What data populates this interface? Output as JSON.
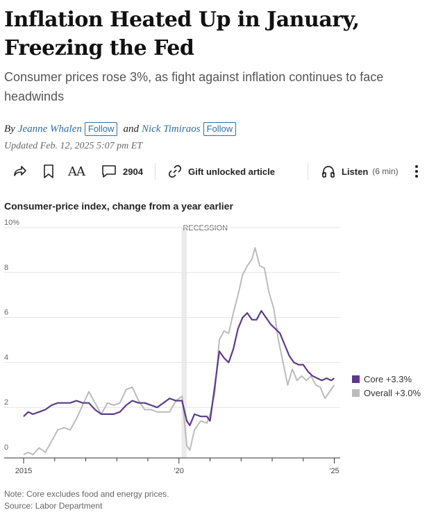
{
  "article": {
    "headline_line1": "Inflation Heated Up in January,",
    "headline_line2": "Freezing the Fed",
    "dek": "Consumer prices rose 3%, as fight against inflation continues to face headwinds",
    "by_label": "By",
    "author1": "Jeanne Whalen",
    "and_label": "and",
    "author2": "Nick Timiraos",
    "follow_label": "Follow",
    "updated": "Updated Feb. 12, 2025 5:07 pm ET"
  },
  "toolbar": {
    "share_icon": "share-icon",
    "bookmark_icon": "bookmark-icon",
    "text_size_label": "AA",
    "comments_count": "2904",
    "gift_label": "Gift unlocked article",
    "listen_label": "Listen",
    "listen_duration": "(6 min)"
  },
  "chart_data": {
    "type": "line",
    "title": "Consumer-price index, change from a year earlier",
    "xlabel": "",
    "ylabel": "",
    "y_tick_labels": [
      "10%",
      "8",
      "6",
      "4",
      "2",
      "0"
    ],
    "y_ticks": [
      10,
      8,
      6,
      4,
      2,
      0
    ],
    "ylim": [
      0,
      10
    ],
    "x_tick_labels": [
      "2015",
      "'20",
      "'25"
    ],
    "x_tick_values": [
      2015,
      2020,
      2025
    ],
    "xlim": [
      2015,
      2025.1
    ],
    "annotation": "RECESSION",
    "recession_band": [
      2020.08,
      2020.25
    ],
    "grid": true,
    "series": [
      {
        "name": "Core +3.3%",
        "color": "#5c3a8a",
        "points": [
          [
            2015.0,
            1.6
          ],
          [
            2015.15,
            1.8
          ],
          [
            2015.3,
            1.7
          ],
          [
            2015.5,
            1.8
          ],
          [
            2015.7,
            1.9
          ],
          [
            2015.9,
            2.1
          ],
          [
            2016.1,
            2.2
          ],
          [
            2016.3,
            2.2
          ],
          [
            2016.5,
            2.2
          ],
          [
            2016.7,
            2.3
          ],
          [
            2016.9,
            2.2
          ],
          [
            2017.1,
            2.2
          ],
          [
            2017.3,
            1.9
          ],
          [
            2017.5,
            1.7
          ],
          [
            2017.7,
            1.7
          ],
          [
            2017.9,
            1.7
          ],
          [
            2018.1,
            1.8
          ],
          [
            2018.3,
            2.1
          ],
          [
            2018.5,
            2.3
          ],
          [
            2018.7,
            2.2
          ],
          [
            2018.9,
            2.2
          ],
          [
            2019.1,
            2.1
          ],
          [
            2019.3,
            2.0
          ],
          [
            2019.5,
            2.2
          ],
          [
            2019.7,
            2.4
          ],
          [
            2019.9,
            2.3
          ],
          [
            2020.1,
            2.3
          ],
          [
            2020.25,
            1.4
          ],
          [
            2020.35,
            1.2
          ],
          [
            2020.5,
            1.7
          ],
          [
            2020.7,
            1.6
          ],
          [
            2020.9,
            1.6
          ],
          [
            2021.0,
            1.4
          ],
          [
            2021.15,
            2.9
          ],
          [
            2021.3,
            4.5
          ],
          [
            2021.45,
            4.2
          ],
          [
            2021.6,
            4.0
          ],
          [
            2021.75,
            4.6
          ],
          [
            2021.9,
            5.5
          ],
          [
            2022.05,
            6.0
          ],
          [
            2022.2,
            6.2
          ],
          [
            2022.35,
            5.9
          ],
          [
            2022.5,
            5.9
          ],
          [
            2022.65,
            6.3
          ],
          [
            2022.8,
            6.0
          ],
          [
            2022.95,
            5.7
          ],
          [
            2023.1,
            5.5
          ],
          [
            2023.25,
            5.3
          ],
          [
            2023.4,
            4.8
          ],
          [
            2023.55,
            4.3
          ],
          [
            2023.7,
            4.0
          ],
          [
            2023.85,
            3.9
          ],
          [
            2024.0,
            3.9
          ],
          [
            2024.15,
            3.6
          ],
          [
            2024.3,
            3.4
          ],
          [
            2024.45,
            3.3
          ],
          [
            2024.6,
            3.2
          ],
          [
            2024.75,
            3.3
          ],
          [
            2024.9,
            3.2
          ],
          [
            2025.0,
            3.3
          ]
        ]
      },
      {
        "name": "Overall +3.0%",
        "color": "#bbbbbb",
        "points": [
          [
            2015.0,
            -0.1
          ],
          [
            2015.15,
            0.0
          ],
          [
            2015.3,
            -0.1
          ],
          [
            2015.5,
            0.2
          ],
          [
            2015.7,
            0.0
          ],
          [
            2015.9,
            0.5
          ],
          [
            2016.1,
            1.0
          ],
          [
            2016.3,
            1.1
          ],
          [
            2016.5,
            1.0
          ],
          [
            2016.7,
            1.5
          ],
          [
            2016.9,
            2.1
          ],
          [
            2017.1,
            2.7
          ],
          [
            2017.3,
            2.2
          ],
          [
            2017.5,
            1.7
          ],
          [
            2017.7,
            2.2
          ],
          [
            2017.9,
            2.1
          ],
          [
            2018.1,
            2.2
          ],
          [
            2018.3,
            2.8
          ],
          [
            2018.5,
            2.9
          ],
          [
            2018.7,
            2.3
          ],
          [
            2018.9,
            1.9
          ],
          [
            2019.1,
            1.9
          ],
          [
            2019.3,
            1.8
          ],
          [
            2019.5,
            1.8
          ],
          [
            2019.7,
            1.8
          ],
          [
            2019.9,
            2.3
          ],
          [
            2020.1,
            2.5
          ],
          [
            2020.25,
            0.3
          ],
          [
            2020.35,
            0.1
          ],
          [
            2020.5,
            1.0
          ],
          [
            2020.7,
            1.4
          ],
          [
            2020.9,
            1.3
          ],
          [
            2021.0,
            1.7
          ],
          [
            2021.15,
            2.6
          ],
          [
            2021.3,
            5.0
          ],
          [
            2021.45,
            5.4
          ],
          [
            2021.6,
            5.3
          ],
          [
            2021.75,
            6.2
          ],
          [
            2021.9,
            7.0
          ],
          [
            2022.05,
            7.9
          ],
          [
            2022.2,
            8.3
          ],
          [
            2022.35,
            8.6
          ],
          [
            2022.45,
            9.1
          ],
          [
            2022.6,
            8.3
          ],
          [
            2022.75,
            8.2
          ],
          [
            2022.9,
            7.1
          ],
          [
            2023.05,
            6.4
          ],
          [
            2023.2,
            5.0
          ],
          [
            2023.35,
            4.0
          ],
          [
            2023.5,
            3.0
          ],
          [
            2023.65,
            3.7
          ],
          [
            2023.8,
            3.2
          ],
          [
            2023.95,
            3.4
          ],
          [
            2024.1,
            3.2
          ],
          [
            2024.25,
            3.4
          ],
          [
            2024.4,
            3.0
          ],
          [
            2024.55,
            2.9
          ],
          [
            2024.7,
            2.4
          ],
          [
            2024.85,
            2.7
          ],
          [
            2025.0,
            3.0
          ]
        ]
      }
    ],
    "footnotes": [
      "Note: Core excludes food and energy prices.",
      "Source: Labor Department"
    ]
  }
}
